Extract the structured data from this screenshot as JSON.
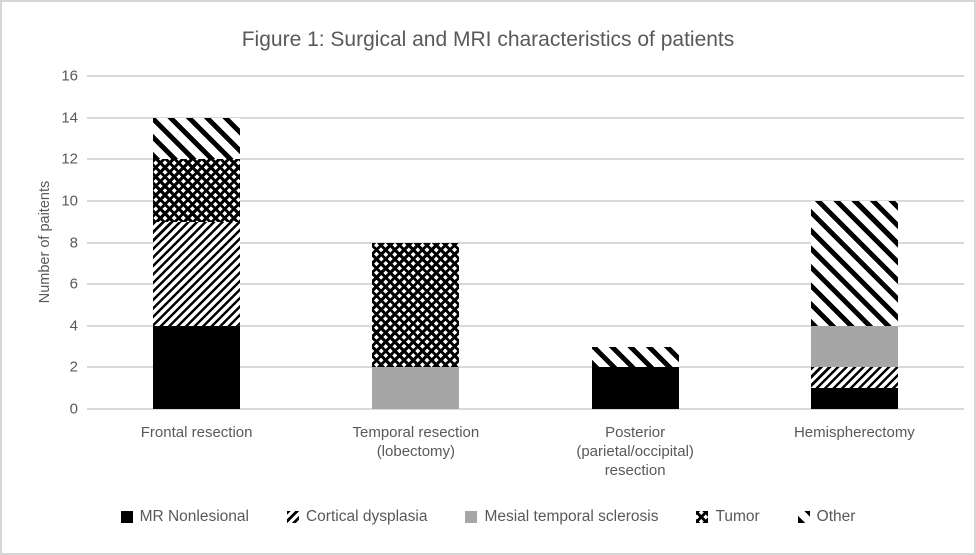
{
  "chart_data": {
    "type": "bar",
    "stacked": true,
    "title": "Figure 1: Surgical and MRI characteristics of patients",
    "ylabel": "Number of paitents",
    "xlabel": "",
    "categories": [
      "Frontal resection",
      "Temporal resection (lobectomy)",
      "Posterior (parietal/occipital) resection",
      "Hemispherectomy"
    ],
    "series": [
      {
        "name": "MR Nonlesional",
        "pattern": "solid-black",
        "color": "#000000",
        "values": [
          4,
          0,
          2,
          1
        ]
      },
      {
        "name": "Cortical dysplasia",
        "pattern": "diag-fine",
        "color": "#000000",
        "values": [
          5,
          0,
          0,
          1
        ]
      },
      {
        "name": "Mesial temporal sclerosis",
        "pattern": "solid-gray",
        "color": "#a6a6a6",
        "values": [
          0,
          2,
          0,
          2
        ]
      },
      {
        "name": "Tumor",
        "pattern": "diamond-check",
        "color": "#000000",
        "values": [
          3,
          6,
          0,
          0
        ]
      },
      {
        "name": "Other",
        "pattern": "diag-wide",
        "color": "#000000",
        "values": [
          2,
          0,
          1,
          6
        ]
      }
    ],
    "totals": [
      14,
      8,
      3,
      10
    ],
    "ylim": [
      0,
      16
    ],
    "yticks": [
      0,
      2,
      4,
      6,
      8,
      10,
      12,
      14,
      16
    ],
    "grid": "horizontal",
    "legend_position": "bottom"
  },
  "colors": {
    "text": "#595959",
    "gridline": "#d9d9d9",
    "frame_border": "#d6d6d6",
    "background": "#ffffff"
  }
}
